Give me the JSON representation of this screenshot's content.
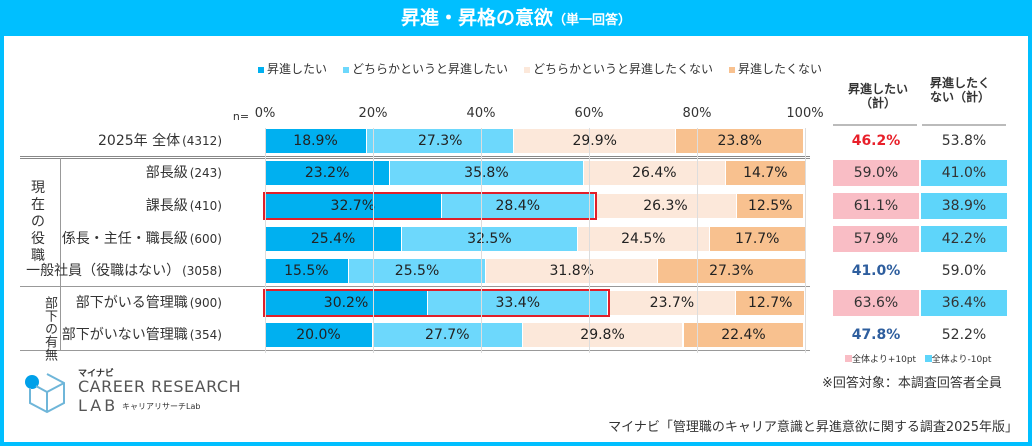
{
  "title": "昇進・昇格の意欲",
  "title_note": "（単一回答）",
  "n_label": "n=",
  "chart_data": {
    "type": "bar",
    "orientation": "horizontal",
    "stacked": true,
    "xlim": [
      0,
      100
    ],
    "ticks": [
      "0%",
      "20%",
      "40%",
      "60%",
      "80%",
      "100%"
    ],
    "legend_position": "top",
    "series": [
      {
        "name": "昇進したい",
        "color": "#00B0F0"
      },
      {
        "name": "どちらかというと昇進したい",
        "color": "#6DD8FC"
      },
      {
        "name": "どちらかというと昇進したくない",
        "color": "#FCE8DA"
      },
      {
        "name": "昇進したくない",
        "color": "#F8C18F"
      }
    ],
    "rows": [
      {
        "label": "2025年 全体",
        "n": "(4312)",
        "values": [
          18.9,
          27.3,
          29.9,
          23.8
        ],
        "want_total": "46.2%",
        "not_total": "53.8%",
        "want_style": "red",
        "not_style": "plain"
      },
      {
        "label": "部長級",
        "n": "(243)",
        "values": [
          23.2,
          35.8,
          26.4,
          14.7
        ],
        "want_total": "59.0%",
        "not_total": "41.0%",
        "want_style": "pink",
        "not_style": "cyan"
      },
      {
        "label": "課長級",
        "n": "(410)",
        "values": [
          32.7,
          28.4,
          26.3,
          12.5
        ],
        "want_total": "61.1%",
        "not_total": "38.9%",
        "want_style": "pink",
        "not_style": "cyan",
        "highlight": true
      },
      {
        "label": "係長・主任・職長級",
        "n": "(600)",
        "values": [
          25.4,
          32.5,
          24.5,
          17.7
        ],
        "want_total": "57.9%",
        "not_total": "42.2%",
        "want_style": "pink",
        "not_style": "cyan"
      },
      {
        "label": "一般社員（役職はない）",
        "n": "(3058)",
        "values": [
          15.5,
          25.5,
          31.8,
          27.3
        ],
        "want_total": "41.0%",
        "not_total": "59.0%",
        "want_style": "blue",
        "not_style": "plain"
      },
      {
        "label": "部下がいる管理職",
        "n": "(900)",
        "values": [
          30.2,
          33.4,
          23.7,
          12.7
        ],
        "want_total": "63.6%",
        "not_total": "36.4%",
        "want_style": "pink",
        "not_style": "cyan",
        "highlight": true
      },
      {
        "label": "部下がいない管理職",
        "n": "(354)",
        "values": [
          20.0,
          27.7,
          29.8,
          22.4
        ],
        "want_total": "47.8%",
        "not_total": "52.2%",
        "want_style": "blue",
        "not_style": "plain"
      }
    ]
  },
  "groups": [
    {
      "label": "現在の役職"
    },
    {
      "label": "部下の有無"
    }
  ],
  "col_headers": {
    "want": "昇進したい（計）",
    "not": "昇進したくない（計）"
  },
  "cell_legend": {
    "plus": "全体より+10pt",
    "minus": "全体より-10pt",
    "plus_color": "#F9BDC5",
    "minus_color": "#5ED5FA"
  },
  "note": "※回答対象：本調査回答者全員",
  "source": "マイナビ「管理職のキャリア意識と昇進意欲に関する調査2025年版」",
  "logo": {
    "brand": "マイナビ",
    "name1": "CAREER RESEARCH",
    "name2": "LAB",
    "sub": "キャリアリサーチLab"
  }
}
